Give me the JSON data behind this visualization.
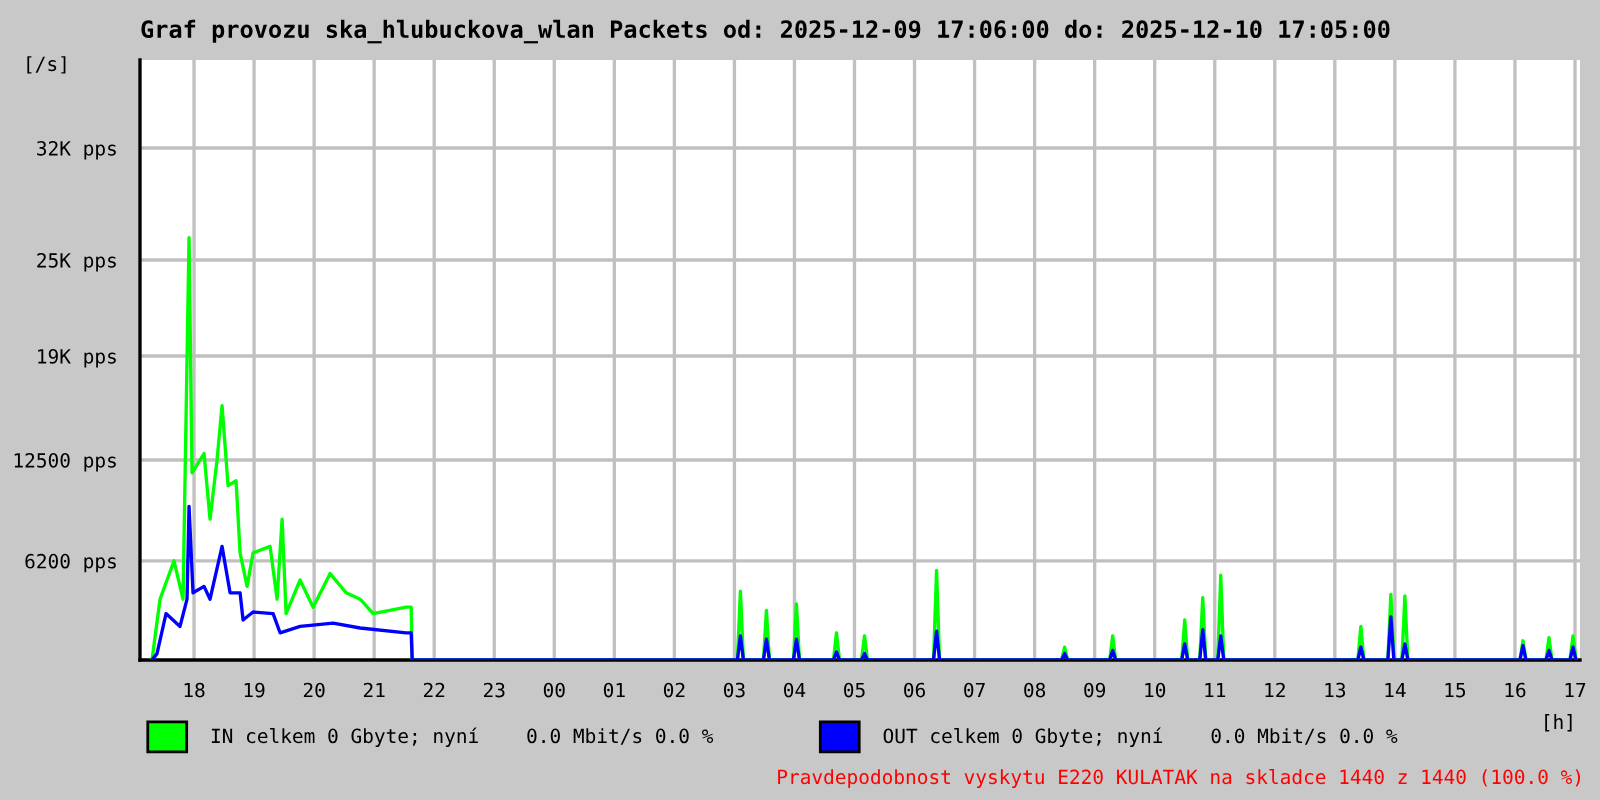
{
  "chart_data": {
    "type": "line",
    "title": "Graf provozu ska_hlubuckova_wlan Packets od: 2025-12-09 17:06:00 do: 2025-12-10 17:05:00",
    "ylabel": "[/s]",
    "xlabel": "[h]",
    "xlim": [
      "2025-12-09T17:06",
      "2025-12-10T17:05"
    ],
    "ylim": [
      0,
      37500
    ],
    "xticks": [
      {
        "value": "2025-12-09T18:00",
        "label": "18"
      },
      {
        "value": "2025-12-09T19:00",
        "label": "19"
      },
      {
        "value": "2025-12-09T20:00",
        "label": "20"
      },
      {
        "value": "2025-12-09T21:00",
        "label": "21"
      },
      {
        "value": "2025-12-09T22:00",
        "label": "22"
      },
      {
        "value": "2025-12-09T23:00",
        "label": "23"
      },
      {
        "value": "2025-12-10T00:00",
        "label": "00"
      },
      {
        "value": "2025-12-10T01:00",
        "label": "01"
      },
      {
        "value": "2025-12-10T02:00",
        "label": "02"
      },
      {
        "value": "2025-12-10T03:00",
        "label": "03"
      },
      {
        "value": "2025-12-10T04:00",
        "label": "04"
      },
      {
        "value": "2025-12-10T05:00",
        "label": "05"
      },
      {
        "value": "2025-12-10T06:00",
        "label": "06"
      },
      {
        "value": "2025-12-10T07:00",
        "label": "07"
      },
      {
        "value": "2025-12-10T08:00",
        "label": "08"
      },
      {
        "value": "2025-12-10T09:00",
        "label": "09"
      },
      {
        "value": "2025-12-10T10:00",
        "label": "10"
      },
      {
        "value": "2025-12-10T11:00",
        "label": "11"
      },
      {
        "value": "2025-12-10T12:00",
        "label": "12"
      },
      {
        "value": "2025-12-10T13:00",
        "label": "13"
      },
      {
        "value": "2025-12-10T14:00",
        "label": "14"
      },
      {
        "value": "2025-12-10T15:00",
        "label": "15"
      },
      {
        "value": "2025-12-10T16:00",
        "label": "16"
      },
      {
        "value": "2025-12-10T17:00",
        "label": "17"
      }
    ],
    "yticks": [
      {
        "value": 6200,
        "label": "6200 pps"
      },
      {
        "value": 12500,
        "label": "12500 pps"
      },
      {
        "value": 19000,
        "label": "19K pps"
      },
      {
        "value": 25000,
        "label": "25K pps"
      },
      {
        "value": 32000,
        "label": "32K pps"
      }
    ],
    "grid": true,
    "legend": "bottom",
    "annotations": [
      "Pravdepodobnost vyskytu E220 KULATAK na skladce 1440 z 1440 (100.0 %)"
    ],
    "series": [
      {
        "name": "IN celkem 0 Gbyte; nyní    0.0 Mbit/s 0.0 %",
        "color": "#00ff00",
        "x": [
          "2025-12-09T17:18",
          "2025-12-09T17:26",
          "2025-12-09T17:40",
          "2025-12-09T17:49",
          "2025-12-09T17:55",
          "2025-12-09T17:58",
          "2025-12-09T18:10",
          "2025-12-09T18:16",
          "2025-12-09T18:23",
          "2025-12-09T18:28",
          "2025-12-09T18:34",
          "2025-12-09T18:42",
          "2025-12-09T18:46",
          "2025-12-09T18:53",
          "2025-12-09T18:59",
          "2025-12-09T19:16",
          "2025-12-09T19:23",
          "2025-12-09T19:28",
          "2025-12-09T19:32",
          "2025-12-09T19:46",
          "2025-12-09T19:59",
          "2025-12-09T20:16",
          "2025-12-09T20:32",
          "2025-12-09T20:46",
          "2025-12-09T20:59",
          "2025-12-09T21:32",
          "2025-12-09T21:37",
          "2025-12-09T21:38",
          "2025-12-10T03:03",
          "2025-12-10T03:06",
          "2025-12-10T03:09",
          "2025-12-10T03:29",
          "2025-12-10T03:32",
          "2025-12-10T03:35",
          "2025-12-10T03:59",
          "2025-12-10T04:02",
          "2025-12-10T04:05",
          "2025-12-10T04:39",
          "2025-12-10T04:42",
          "2025-12-10T04:45",
          "2025-12-10T05:07",
          "2025-12-10T05:10",
          "2025-12-10T05:13",
          "2025-12-10T06:19",
          "2025-12-10T06:22",
          "2025-12-10T06:25",
          "2025-12-10T08:27",
          "2025-12-10T08:30",
          "2025-12-10T08:33",
          "2025-12-10T09:15",
          "2025-12-10T09:18",
          "2025-12-10T09:21",
          "2025-12-10T10:27",
          "2025-12-10T10:30",
          "2025-12-10T10:33",
          "2025-12-10T10:45",
          "2025-12-10T10:48",
          "2025-12-10T10:51",
          "2025-12-10T11:03",
          "2025-12-10T11:06",
          "2025-12-10T11:09",
          "2025-12-10T13:23",
          "2025-12-10T13:26",
          "2025-12-10T13:29",
          "2025-12-10T13:53",
          "2025-12-10T13:56",
          "2025-12-10T13:59",
          "2025-12-10T14:07",
          "2025-12-10T14:10",
          "2025-12-10T14:13",
          "2025-12-10T16:05",
          "2025-12-10T16:08",
          "2025-12-10T16:11",
          "2025-12-10T16:31",
          "2025-12-10T16:34",
          "2025-12-10T16:37",
          "2025-12-10T16:55",
          "2025-12-10T16:58",
          "2025-12-10T17:01"
        ],
        "values": [
          0,
          3800,
          6200,
          3800,
          26400,
          11700,
          12900,
          8800,
          12500,
          15900,
          10900,
          11200,
          6700,
          4600,
          6700,
          7100,
          3800,
          8800,
          2900,
          5000,
          3300,
          5400,
          4200,
          3800,
          2900,
          3300,
          3300,
          0,
          0,
          4300,
          0,
          0,
          3100,
          0,
          0,
          3500,
          0,
          0,
          1700,
          0,
          0,
          1500,
          0,
          0,
          5600,
          0,
          0,
          800,
          0,
          0,
          1500,
          0,
          0,
          2500,
          0,
          0,
          3900,
          0,
          0,
          5300,
          0,
          0,
          2100,
          0,
          0,
          4100,
          0,
          0,
          4000,
          0,
          0,
          1200,
          0,
          0,
          1400,
          0,
          0,
          1500,
          0
        ]
      },
      {
        "name": "OUT celkem 0 Gbyte; nyní    0.0 Mbit/s 0.0 %",
        "color": "#0000ff",
        "x": [
          "2025-12-09T17:18",
          "2025-12-09T17:23",
          "2025-12-09T17:32",
          "2025-12-09T17:46",
          "2025-12-09T17:53",
          "2025-12-09T17:55",
          "2025-12-09T17:59",
          "2025-12-09T18:10",
          "2025-12-09T18:16",
          "2025-12-09T18:28",
          "2025-12-09T18:36",
          "2025-12-09T18:46",
          "2025-12-09T18:49",
          "2025-12-09T18:59",
          "2025-12-09T19:19",
          "2025-12-09T19:26",
          "2025-12-09T19:46",
          "2025-12-09T20:19",
          "2025-12-09T20:46",
          "2025-12-09T21:32",
          "2025-12-09T21:37",
          "2025-12-09T21:38",
          "2025-12-10T03:03",
          "2025-12-10T03:06",
          "2025-12-10T03:09",
          "2025-12-10T03:29",
          "2025-12-10T03:32",
          "2025-12-10T03:35",
          "2025-12-10T03:59",
          "2025-12-10T04:02",
          "2025-12-10T04:05",
          "2025-12-10T04:39",
          "2025-12-10T04:42",
          "2025-12-10T04:45",
          "2025-12-10T05:07",
          "2025-12-10T05:10",
          "2025-12-10T05:13",
          "2025-12-10T06:19",
          "2025-12-10T06:22",
          "2025-12-10T06:25",
          "2025-12-10T08:27",
          "2025-12-10T08:30",
          "2025-12-10T08:33",
          "2025-12-10T09:15",
          "2025-12-10T09:18",
          "2025-12-10T09:21",
          "2025-12-10T10:27",
          "2025-12-10T10:30",
          "2025-12-10T10:33",
          "2025-12-10T10:45",
          "2025-12-10T10:48",
          "2025-12-10T10:51",
          "2025-12-10T11:03",
          "2025-12-10T11:06",
          "2025-12-10T11:09",
          "2025-12-10T13:23",
          "2025-12-10T13:26",
          "2025-12-10T13:29",
          "2025-12-10T13:53",
          "2025-12-10T13:56",
          "2025-12-10T13:59",
          "2025-12-10T14:07",
          "2025-12-10T14:10",
          "2025-12-10T14:13",
          "2025-12-10T16:05",
          "2025-12-10T16:08",
          "2025-12-10T16:11",
          "2025-12-10T16:31",
          "2025-12-10T16:34",
          "2025-12-10T16:37",
          "2025-12-10T16:55",
          "2025-12-10T16:58",
          "2025-12-10T17:01"
        ],
        "values": [
          0,
          400,
          2900,
          2100,
          3800,
          9600,
          4200,
          4600,
          3800,
          7100,
          4200,
          4200,
          2500,
          3000,
          2900,
          1700,
          2100,
          2300,
          2000,
          1700,
          1700,
          0,
          0,
          1500,
          0,
          0,
          1300,
          0,
          0,
          1300,
          0,
          0,
          500,
          0,
          0,
          400,
          0,
          0,
          1800,
          0,
          0,
          400,
          0,
          0,
          600,
          0,
          0,
          1000,
          0,
          0,
          1900,
          0,
          0,
          1500,
          0,
          0,
          800,
          0,
          0,
          2700,
          0,
          0,
          1000,
          0,
          0,
          900,
          0,
          0,
          600,
          0,
          0,
          800,
          0
        ]
      }
    ]
  }
}
